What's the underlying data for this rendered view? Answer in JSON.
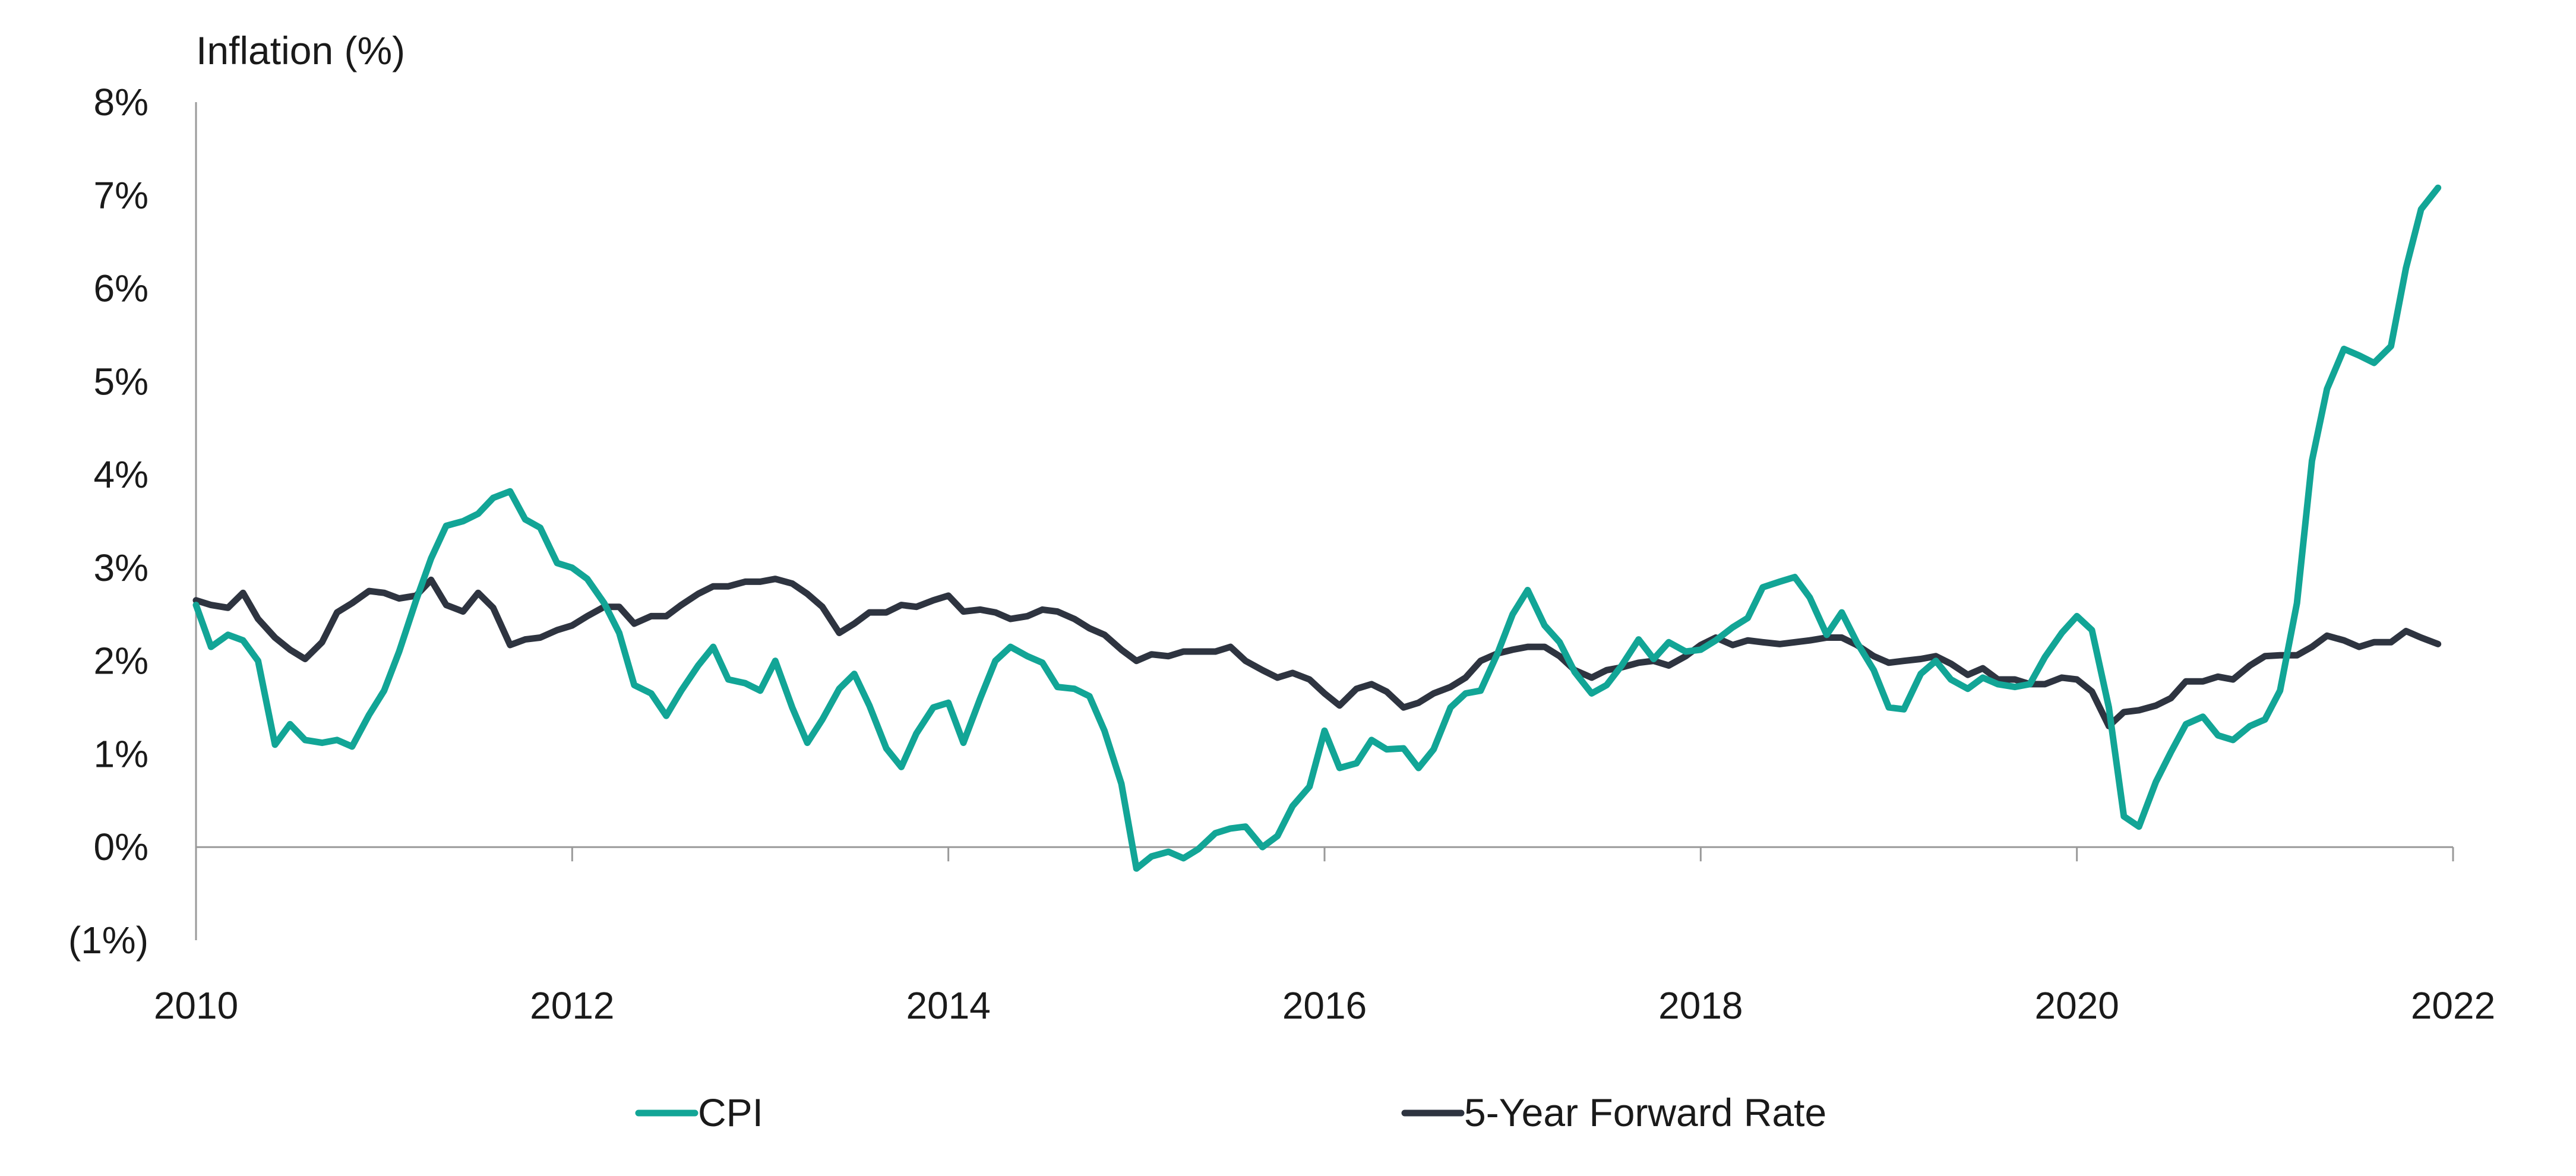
{
  "chart_data": {
    "type": "line",
    "title": "",
    "ylabel": "Inflation (%)",
    "xlabel": "",
    "ylim": [
      -1,
      8
    ],
    "y_ticks": [
      {
        "value": 8,
        "label": "8%"
      },
      {
        "value": 7,
        "label": "7%"
      },
      {
        "value": 6,
        "label": "6%"
      },
      {
        "value": 5,
        "label": "5%"
      },
      {
        "value": 4,
        "label": "4%"
      },
      {
        "value": 3,
        "label": "3%"
      },
      {
        "value": 2,
        "label": "2%"
      },
      {
        "value": 1,
        "label": "1%"
      },
      {
        "value": 0,
        "label": "0%"
      },
      {
        "value": -1,
        "label": "(1%)"
      }
    ],
    "xlim": [
      2010,
      2022
    ],
    "x_ticks": [
      {
        "value": 2010,
        "label": "2010"
      },
      {
        "value": 2012,
        "label": "2012"
      },
      {
        "value": 2014,
        "label": "2014"
      },
      {
        "value": 2016,
        "label": "2016"
      },
      {
        "value": 2018,
        "label": "2018"
      },
      {
        "value": 2020,
        "label": "2020"
      },
      {
        "value": 2022,
        "label": "2022"
      }
    ],
    "grid": false,
    "legend_position": "bottom",
    "series": [
      {
        "name": "CPI",
        "color": "#12A596",
        "points": [
          [
            2010.0,
            2.6
          ],
          [
            2010.08,
            2.15
          ],
          [
            2010.17,
            2.28
          ],
          [
            2010.25,
            2.22
          ],
          [
            2010.33,
            2.0
          ],
          [
            2010.42,
            1.1
          ],
          [
            2010.5,
            1.32
          ],
          [
            2010.58,
            1.15
          ],
          [
            2010.67,
            1.12
          ],
          [
            2010.75,
            1.15
          ],
          [
            2010.83,
            1.08
          ],
          [
            2010.92,
            1.42
          ],
          [
            2011.0,
            1.68
          ],
          [
            2011.08,
            2.1
          ],
          [
            2011.17,
            2.65
          ],
          [
            2011.25,
            3.1
          ],
          [
            2011.33,
            3.45
          ],
          [
            2011.42,
            3.5
          ],
          [
            2011.5,
            3.58
          ],
          [
            2011.58,
            3.75
          ],
          [
            2011.67,
            3.82
          ],
          [
            2011.75,
            3.52
          ],
          [
            2011.83,
            3.43
          ],
          [
            2011.92,
            3.05
          ],
          [
            2012.0,
            3.0
          ],
          [
            2012.08,
            2.88
          ],
          [
            2012.17,
            2.62
          ],
          [
            2012.25,
            2.3
          ],
          [
            2012.33,
            1.74
          ],
          [
            2012.42,
            1.65
          ],
          [
            2012.5,
            1.41
          ],
          [
            2012.58,
            1.68
          ],
          [
            2012.67,
            1.95
          ],
          [
            2012.75,
            2.15
          ],
          [
            2012.83,
            1.8
          ],
          [
            2012.92,
            1.76
          ],
          [
            2013.0,
            1.68
          ],
          [
            2013.08,
            2.0
          ],
          [
            2013.17,
            1.5
          ],
          [
            2013.25,
            1.12
          ],
          [
            2013.33,
            1.37
          ],
          [
            2013.42,
            1.7
          ],
          [
            2013.5,
            1.86
          ],
          [
            2013.58,
            1.52
          ],
          [
            2013.67,
            1.06
          ],
          [
            2013.75,
            0.86
          ],
          [
            2013.83,
            1.22
          ],
          [
            2013.92,
            1.5
          ],
          [
            2014.0,
            1.55
          ],
          [
            2014.08,
            1.12
          ],
          [
            2014.17,
            1.6
          ],
          [
            2014.25,
            2.0
          ],
          [
            2014.33,
            2.15
          ],
          [
            2014.42,
            2.05
          ],
          [
            2014.5,
            1.98
          ],
          [
            2014.58,
            1.72
          ],
          [
            2014.67,
            1.7
          ],
          [
            2014.75,
            1.62
          ],
          [
            2014.83,
            1.25
          ],
          [
            2014.92,
            0.68
          ],
          [
            2015.0,
            -0.23
          ],
          [
            2015.08,
            -0.1
          ],
          [
            2015.17,
            -0.05
          ],
          [
            2015.25,
            -0.12
          ],
          [
            2015.33,
            -0.02
          ],
          [
            2015.42,
            0.15
          ],
          [
            2015.5,
            0.2
          ],
          [
            2015.58,
            0.22
          ],
          [
            2015.67,
            0.0
          ],
          [
            2015.75,
            0.12
          ],
          [
            2015.83,
            0.44
          ],
          [
            2015.92,
            0.65
          ],
          [
            2016.0,
            1.25
          ],
          [
            2016.08,
            0.85
          ],
          [
            2016.17,
            0.9
          ],
          [
            2016.25,
            1.15
          ],
          [
            2016.33,
            1.05
          ],
          [
            2016.42,
            1.06
          ],
          [
            2016.5,
            0.85
          ],
          [
            2016.58,
            1.05
          ],
          [
            2016.67,
            1.5
          ],
          [
            2016.75,
            1.65
          ],
          [
            2016.83,
            1.68
          ],
          [
            2016.92,
            2.08
          ],
          [
            2017.0,
            2.5
          ],
          [
            2017.08,
            2.76
          ],
          [
            2017.17,
            2.38
          ],
          [
            2017.25,
            2.2
          ],
          [
            2017.33,
            1.88
          ],
          [
            2017.42,
            1.65
          ],
          [
            2017.5,
            1.74
          ],
          [
            2017.58,
            1.95
          ],
          [
            2017.67,
            2.23
          ],
          [
            2017.75,
            2.02
          ],
          [
            2017.83,
            2.2
          ],
          [
            2017.92,
            2.1
          ],
          [
            2018.0,
            2.12
          ],
          [
            2018.08,
            2.22
          ],
          [
            2018.17,
            2.36
          ],
          [
            2018.25,
            2.46
          ],
          [
            2018.33,
            2.79
          ],
          [
            2018.42,
            2.85
          ],
          [
            2018.5,
            2.9
          ],
          [
            2018.58,
            2.68
          ],
          [
            2018.67,
            2.28
          ],
          [
            2018.75,
            2.52
          ],
          [
            2018.83,
            2.2
          ],
          [
            2018.92,
            1.9
          ],
          [
            2019.0,
            1.5
          ],
          [
            2019.08,
            1.48
          ],
          [
            2019.17,
            1.86
          ],
          [
            2019.25,
            2.0
          ],
          [
            2019.33,
            1.8
          ],
          [
            2019.42,
            1.7
          ],
          [
            2019.5,
            1.82
          ],
          [
            2019.58,
            1.75
          ],
          [
            2019.67,
            1.72
          ],
          [
            2019.75,
            1.75
          ],
          [
            2019.83,
            2.04
          ],
          [
            2019.92,
            2.3
          ],
          [
            2020.0,
            2.48
          ],
          [
            2020.08,
            2.33
          ],
          [
            2020.17,
            1.5
          ],
          [
            2020.25,
            0.33
          ],
          [
            2020.33,
            0.22
          ],
          [
            2020.42,
            0.7
          ],
          [
            2020.5,
            1.02
          ],
          [
            2020.58,
            1.32
          ],
          [
            2020.67,
            1.4
          ],
          [
            2020.75,
            1.2
          ],
          [
            2020.83,
            1.15
          ],
          [
            2020.92,
            1.3
          ],
          [
            2021.0,
            1.37
          ],
          [
            2021.08,
            1.68
          ],
          [
            2021.17,
            2.62
          ],
          [
            2021.25,
            4.15
          ],
          [
            2021.33,
            4.92
          ],
          [
            2021.42,
            5.35
          ],
          [
            2021.5,
            5.28
          ],
          [
            2021.58,
            5.2
          ],
          [
            2021.67,
            5.38
          ],
          [
            2021.75,
            6.22
          ],
          [
            2021.83,
            6.85
          ],
          [
            2021.92,
            7.08
          ]
        ]
      },
      {
        "name": "5-Year Forward Rate",
        "color": "#2E3440",
        "points": [
          [
            2010.0,
            2.65
          ],
          [
            2010.08,
            2.6
          ],
          [
            2010.17,
            2.57
          ],
          [
            2010.25,
            2.73
          ],
          [
            2010.33,
            2.45
          ],
          [
            2010.42,
            2.25
          ],
          [
            2010.5,
            2.12
          ],
          [
            2010.58,
            2.02
          ],
          [
            2010.67,
            2.2
          ],
          [
            2010.75,
            2.52
          ],
          [
            2010.83,
            2.62
          ],
          [
            2010.92,
            2.75
          ],
          [
            2011.0,
            2.73
          ],
          [
            2011.08,
            2.67
          ],
          [
            2011.17,
            2.7
          ],
          [
            2011.25,
            2.87
          ],
          [
            2011.33,
            2.6
          ],
          [
            2011.42,
            2.53
          ],
          [
            2011.5,
            2.73
          ],
          [
            2011.58,
            2.57
          ],
          [
            2011.67,
            2.17
          ],
          [
            2011.75,
            2.23
          ],
          [
            2011.83,
            2.25
          ],
          [
            2011.92,
            2.33
          ],
          [
            2012.0,
            2.38
          ],
          [
            2012.08,
            2.48
          ],
          [
            2012.17,
            2.58
          ],
          [
            2012.25,
            2.58
          ],
          [
            2012.33,
            2.4
          ],
          [
            2012.42,
            2.48
          ],
          [
            2012.5,
            2.48
          ],
          [
            2012.58,
            2.6
          ],
          [
            2012.67,
            2.72
          ],
          [
            2012.75,
            2.8
          ],
          [
            2012.83,
            2.8
          ],
          [
            2012.92,
            2.85
          ],
          [
            2013.0,
            2.85
          ],
          [
            2013.08,
            2.88
          ],
          [
            2013.17,
            2.83
          ],
          [
            2013.25,
            2.72
          ],
          [
            2013.33,
            2.58
          ],
          [
            2013.42,
            2.3
          ],
          [
            2013.5,
            2.4
          ],
          [
            2013.58,
            2.52
          ],
          [
            2013.67,
            2.52
          ],
          [
            2013.75,
            2.6
          ],
          [
            2013.83,
            2.58
          ],
          [
            2013.92,
            2.65
          ],
          [
            2014.0,
            2.7
          ],
          [
            2014.08,
            2.53
          ],
          [
            2014.17,
            2.55
          ],
          [
            2014.25,
            2.52
          ],
          [
            2014.33,
            2.45
          ],
          [
            2014.42,
            2.48
          ],
          [
            2014.5,
            2.55
          ],
          [
            2014.58,
            2.53
          ],
          [
            2014.67,
            2.45
          ],
          [
            2014.75,
            2.35
          ],
          [
            2014.83,
            2.28
          ],
          [
            2014.92,
            2.12
          ],
          [
            2015.0,
            2.0
          ],
          [
            2015.08,
            2.07
          ],
          [
            2015.17,
            2.05
          ],
          [
            2015.25,
            2.1
          ],
          [
            2015.33,
            2.1
          ],
          [
            2015.42,
            2.1
          ],
          [
            2015.5,
            2.15
          ],
          [
            2015.58,
            2.0
          ],
          [
            2015.67,
            1.9
          ],
          [
            2015.75,
            1.82
          ],
          [
            2015.83,
            1.87
          ],
          [
            2015.92,
            1.8
          ],
          [
            2016.0,
            1.65
          ],
          [
            2016.08,
            1.52
          ],
          [
            2016.17,
            1.7
          ],
          [
            2016.25,
            1.75
          ],
          [
            2016.33,
            1.67
          ],
          [
            2016.42,
            1.5
          ],
          [
            2016.5,
            1.55
          ],
          [
            2016.58,
            1.65
          ],
          [
            2016.67,
            1.72
          ],
          [
            2016.75,
            1.82
          ],
          [
            2016.83,
            2.0
          ],
          [
            2016.92,
            2.08
          ],
          [
            2017.0,
            2.12
          ],
          [
            2017.08,
            2.15
          ],
          [
            2017.17,
            2.15
          ],
          [
            2017.25,
            2.05
          ],
          [
            2017.33,
            1.9
          ],
          [
            2017.42,
            1.82
          ],
          [
            2017.5,
            1.9
          ],
          [
            2017.58,
            1.93
          ],
          [
            2017.67,
            1.98
          ],
          [
            2017.75,
            2.0
          ],
          [
            2017.83,
            1.95
          ],
          [
            2017.92,
            2.05
          ],
          [
            2018.0,
            2.17
          ],
          [
            2018.08,
            2.25
          ],
          [
            2018.17,
            2.17
          ],
          [
            2018.25,
            2.22
          ],
          [
            2018.33,
            2.2
          ],
          [
            2018.42,
            2.18
          ],
          [
            2018.5,
            2.2
          ],
          [
            2018.58,
            2.22
          ],
          [
            2018.67,
            2.25
          ],
          [
            2018.75,
            2.25
          ],
          [
            2018.83,
            2.17
          ],
          [
            2018.92,
            2.05
          ],
          [
            2019.0,
            1.98
          ],
          [
            2019.08,
            2.0
          ],
          [
            2019.17,
            2.02
          ],
          [
            2019.25,
            2.05
          ],
          [
            2019.33,
            1.97
          ],
          [
            2019.42,
            1.85
          ],
          [
            2019.5,
            1.92
          ],
          [
            2019.58,
            1.8
          ],
          [
            2019.67,
            1.8
          ],
          [
            2019.75,
            1.75
          ],
          [
            2019.83,
            1.75
          ],
          [
            2019.92,
            1.82
          ],
          [
            2020.0,
            1.8
          ],
          [
            2020.08,
            1.67
          ],
          [
            2020.17,
            1.3
          ],
          [
            2020.25,
            1.45
          ],
          [
            2020.33,
            1.47
          ],
          [
            2020.42,
            1.52
          ],
          [
            2020.5,
            1.6
          ],
          [
            2020.58,
            1.78
          ],
          [
            2020.67,
            1.78
          ],
          [
            2020.75,
            1.83
          ],
          [
            2020.83,
            1.8
          ],
          [
            2020.92,
            1.95
          ],
          [
            2021.0,
            2.05
          ],
          [
            2021.08,
            2.06
          ],
          [
            2021.17,
            2.06
          ],
          [
            2021.25,
            2.15
          ],
          [
            2021.33,
            2.27
          ],
          [
            2021.42,
            2.22
          ],
          [
            2021.5,
            2.15
          ],
          [
            2021.58,
            2.2
          ],
          [
            2021.67,
            2.2
          ],
          [
            2021.75,
            2.32
          ],
          [
            2021.83,
            2.25
          ],
          [
            2021.92,
            2.18
          ]
        ]
      }
    ]
  },
  "colors": {
    "axis": "#9a9a9a",
    "text": "#1a1a1a",
    "negative_label": "#e0201b"
  }
}
